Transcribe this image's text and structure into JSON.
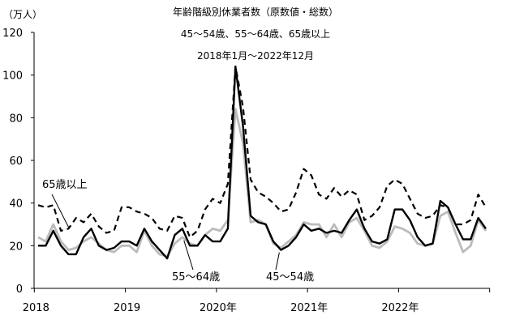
{
  "chart_data": {
    "type": "line",
    "title": "年齢階級別休業者数（原数値・総数）",
    "subtitle": "45～54歳、55～64歳、65歳以上",
    "period": "2018年1月～2022年12月",
    "ylabel": "（万人）",
    "ylim": [
      0,
      120
    ],
    "yticks": [
      0,
      20,
      40,
      60,
      80,
      100,
      120
    ],
    "x_labels": [
      "2018",
      "2019",
      "2020年",
      "2021年",
      "2022年"
    ],
    "x_months": 60,
    "grid": false,
    "series": [
      {
        "name": "45～54歳",
        "color": "#000000",
        "style": "solid",
        "values": [
          20,
          20,
          27,
          20,
          16,
          16,
          24,
          28,
          20,
          18,
          19,
          22,
          22,
          20,
          28,
          22,
          18,
          14,
          25,
          28,
          20,
          20,
          25,
          22,
          22,
          28,
          104,
          76,
          34,
          31,
          30,
          22,
          18,
          20,
          24,
          30,
          27,
          28,
          26,
          27,
          26,
          32,
          37,
          28,
          22,
          21,
          23,
          37,
          37,
          32,
          24,
          20,
          21,
          41,
          38,
          30,
          23,
          23,
          33,
          28
        ]
      },
      {
        "name": "55～64歳",
        "color": "#bbbbbb",
        "style": "solid",
        "values": [
          24,
          22,
          30,
          22,
          18,
          19,
          22,
          24,
          21,
          18,
          17,
          20,
          20,
          17,
          27,
          20,
          16,
          15,
          21,
          24,
          21,
          20,
          25,
          28,
          27,
          32,
          84,
          68,
          31,
          32,
          30,
          21,
          19,
          22,
          25,
          31,
          30,
          30,
          24,
          30,
          24,
          31,
          33,
          27,
          20,
          19,
          22,
          29,
          28,
          26,
          21,
          20,
          21,
          34,
          36,
          26,
          17,
          20,
          32,
          27
        ]
      },
      {
        "name": "65歳以上",
        "color": "#000000",
        "style": "dashed",
        "values": [
          39,
          38,
          39,
          27,
          28,
          33,
          31,
          35,
          29,
          26,
          27,
          38,
          38,
          36,
          35,
          33,
          28,
          27,
          34,
          33,
          24,
          27,
          37,
          42,
          40,
          49,
          104,
          85,
          51,
          45,
          43,
          40,
          36,
          37,
          45,
          56,
          53,
          44,
          42,
          47,
          43,
          46,
          44,
          32,
          34,
          38,
          48,
          51,
          49,
          42,
          35,
          33,
          34,
          39,
          38,
          30,
          30,
          32,
          44,
          38
        ]
      }
    ],
    "annotations": [
      {
        "text": "65歳以上",
        "series": 2
      },
      {
        "text": "55～64歳",
        "series": 1
      },
      {
        "text": "45～54歳",
        "series": 0
      }
    ]
  }
}
